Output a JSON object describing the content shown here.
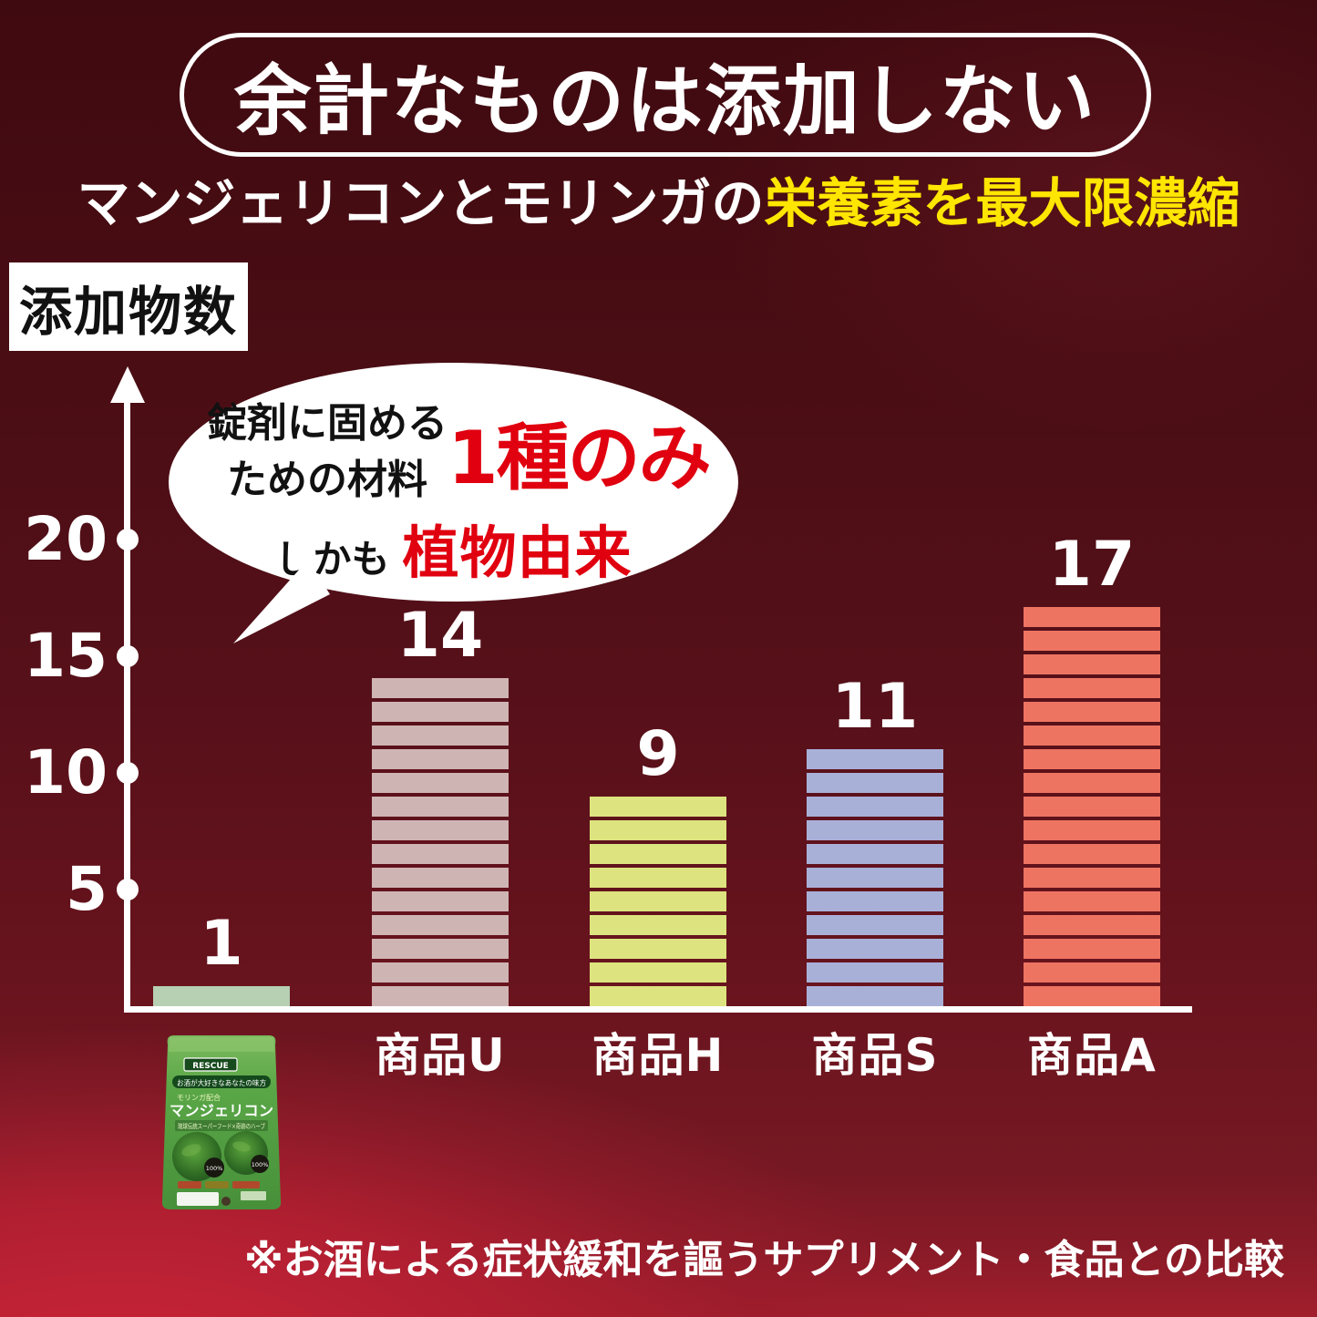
{
  "header": {
    "title": "余計なものは添加しない",
    "subtitle_plain": "マンジェリコンとモリンガの",
    "subtitle_highlight": "栄養素を最大限濃縮",
    "highlight_color": "#ffe600"
  },
  "bubble": {
    "line1": "錠剤に固める",
    "line2": "ための材料",
    "big_red": "1種のみ",
    "tail_plain": "しかも",
    "tail_red": "植物由来",
    "red_color": "#e0000f"
  },
  "chart_data": {
    "type": "bar",
    "title": "添加物数",
    "ylabel": "添加物数",
    "categories": [
      "",
      "商品U",
      "商品H",
      "商品S",
      "商品A"
    ],
    "values": [
      1,
      14,
      9,
      11,
      17
    ],
    "bar_colors": [
      "#b7cfb3",
      "#cfb4b4",
      "#dde37e",
      "#a9b0d8",
      "#ee7462"
    ],
    "separator_color": "#4c0d15",
    "value_label_color": "#ffffff",
    "yticks": [
      20,
      15,
      10,
      5
    ],
    "ylim": [
      0,
      22
    ],
    "axis_color": "#ffffff",
    "grid": false,
    "legend": false,
    "first_category_marker": "product-pouch-image",
    "bars_segmented_by_unit": true
  },
  "footnote": "※お酒による症状緩和を謳うサプリメント・食品との比較",
  "pouch": {
    "brand": "RESCUE",
    "banner": "お酒が大好きなあなたの味方",
    "sub": "モリンガ配合",
    "name": "マンジェリコン",
    "band": "琉球伝統スーパーフード×奇跡のハーブ",
    "badge": "100%"
  },
  "colors": {
    "bg_top": "#3f0a10",
    "bg_bottom": "#7e1a26",
    "floor_glow": "#cc2438",
    "axis_white": "#ffffff"
  }
}
